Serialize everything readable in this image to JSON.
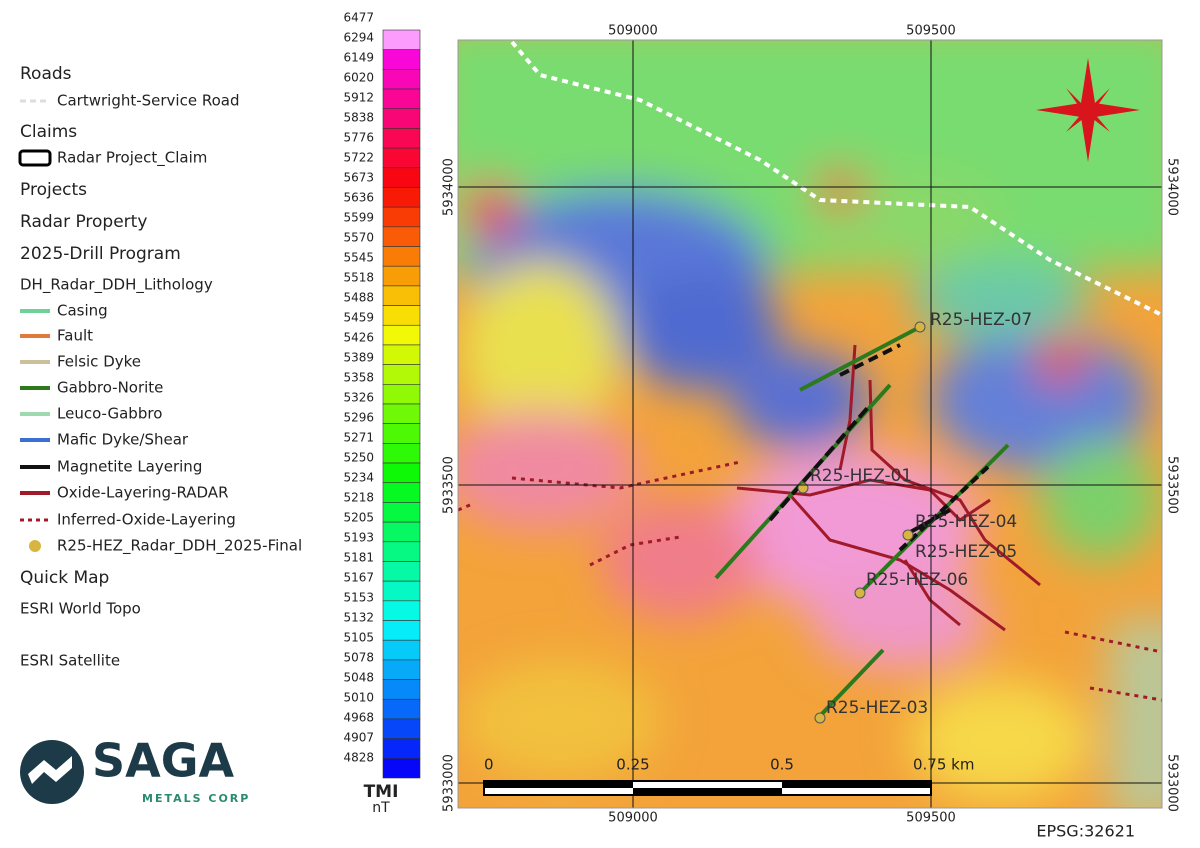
{
  "legend": [
    "Roads",
    "Cartwright-Service Road",
    "Claims",
    "Radar Project_Claim",
    "Projects",
    "Radar Property",
    "2025-Drill Program",
    "DH_Radar_DDH_Lithology",
    "Casing",
    "Fault",
    "Felsic Dyke",
    "Gabbro-Norite",
    "Leuco-Gabbro",
    "Mafic Dyke/Shear",
    "Magnetite Layering",
    "Oxide-Layering-RADAR",
    "Inferred-Oxide-Layering",
    "R25-HEZ_Radar_DDH_2025-Final",
    "Quick Map",
    "ESRI World Topo",
    "ESRI Satellite"
  ],
  "logo": {
    "name": "SAGA",
    "subtitle": "METALS CORP"
  },
  "colorbar": {
    "values": [
      6477,
      6294,
      6149,
      6020,
      5912,
      5838,
      5776,
      5722,
      5673,
      5636,
      5599,
      5570,
      5545,
      5518,
      5488,
      5459,
      5426,
      5389,
      5358,
      5326,
      5296,
      5271,
      5250,
      5234,
      5218,
      5205,
      5193,
      5181,
      5167,
      5153,
      5132,
      5105,
      5078,
      5048,
      5010,
      4968,
      4907,
      4828
    ],
    "title": "TMI",
    "unit": "nT"
  },
  "map": {
    "easting": [
      509000,
      509500
    ],
    "northing": [
      5934000,
      5933500,
      5933000
    ],
    "scale_labels": [
      "0",
      "0.25",
      "0.5",
      "0.75 km"
    ],
    "drill_holes": [
      "R25-HEZ-07",
      "R25-HEZ-01",
      "R25-HEZ-04",
      "R25-HEZ-05",
      "R25-HEZ-06",
      "R25-HEZ-03"
    ],
    "crs": "EPSG:32621"
  }
}
